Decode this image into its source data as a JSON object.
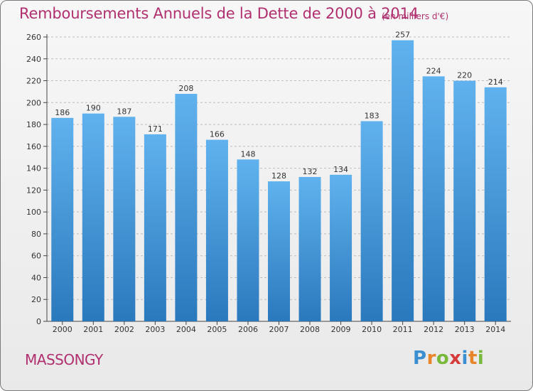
{
  "title": "Remboursements Annuels de la Dette de 2000 à 2014",
  "unit_note": "(en milliers d'€)",
  "town": "MASSONGY",
  "logo": {
    "letters": [
      "P",
      "r",
      "o",
      "x",
      "i",
      "t",
      "i"
    ],
    "colors": [
      "#3b8fd0",
      "#e8842a",
      "#78b83a",
      "#d63c3c",
      "#3b8fd0",
      "#e8842a",
      "#78b83a"
    ]
  },
  "colors": {
    "accent": "#b0306f",
    "bar_top": "#5fb0ec",
    "bar_bottom": "#2f7fc4"
  },
  "chart_data": {
    "type": "bar",
    "title": "Remboursements Annuels de la Dette de 2000 à 2014",
    "subtitle": "(en milliers d'€)",
    "categories": [
      "2000",
      "2001",
      "2002",
      "2003",
      "2004",
      "2005",
      "2006",
      "2007",
      "2008",
      "2009",
      "2010",
      "2011",
      "2012",
      "2013",
      "2014"
    ],
    "values": [
      186,
      190,
      187,
      171,
      208,
      166,
      148,
      128,
      132,
      134,
      183,
      257,
      224,
      220,
      214
    ],
    "ylim": [
      0,
      260
    ],
    "yticks": [
      0,
      20,
      40,
      60,
      80,
      100,
      120,
      140,
      160,
      180,
      200,
      220,
      240,
      260
    ],
    "grid": true,
    "data_labels": true
  }
}
